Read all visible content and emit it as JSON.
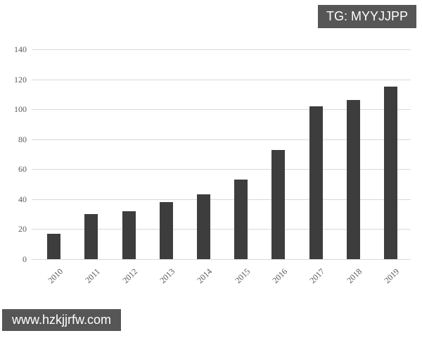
{
  "page": {
    "background": "#ffffff"
  },
  "watermarks": {
    "top_right": "TG: MYYJJPP",
    "bottom_left": "www.hzkjjrfw.com",
    "badge_background": "#565656",
    "badge_text_color": "#ffffff"
  },
  "chart_data": {
    "type": "bar",
    "title": "",
    "xlabel": "",
    "ylabel": "",
    "categories": [
      "2010",
      "2011",
      "2012",
      "2013",
      "2014",
      "2015",
      "2016",
      "2017",
      "2018",
      "2019"
    ],
    "values": [
      17,
      30,
      32,
      38,
      43,
      53,
      73,
      102,
      106,
      115
    ],
    "ylim": [
      0,
      140
    ],
    "yticks": [
      0,
      20,
      40,
      60,
      80,
      100,
      120,
      140
    ],
    "grid": true,
    "legend": "none",
    "bar_color": "#3d3d3d",
    "gridline_color": "#d9d9d9",
    "tick_label_color": "#595959"
  }
}
